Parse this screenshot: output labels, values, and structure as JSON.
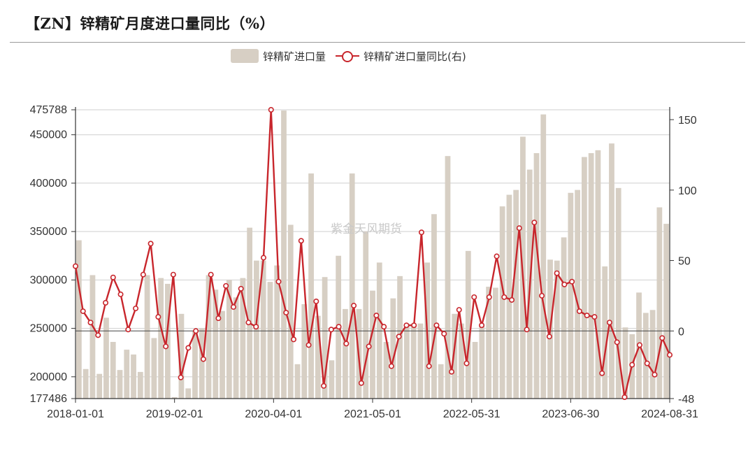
{
  "title": "【ZN】锌精矿月度进口量同比（%）",
  "watermark": "紫金天风期货",
  "legend": [
    {
      "label": "锌精矿进口量",
      "type": "bar",
      "color": "#d7cfc4"
    },
    {
      "label": "锌精矿进口量同比(右)",
      "type": "line",
      "color": "#c8262c"
    }
  ],
  "chart_data": {
    "type": "bar+line",
    "title": "【ZN】锌精矿月度进口量同比（%）",
    "x_ticks": [
      "2018-01-01",
      "2019-02-01",
      "2020-04-01",
      "2021-05-01",
      "2022-05-31",
      "2023-06-30",
      "2024-08-31"
    ],
    "y_left": {
      "min": 177486,
      "max": 475788,
      "ticks": [
        177486,
        200000,
        250000,
        300000,
        350000,
        400000,
        450000,
        475788
      ]
    },
    "y_right": {
      "min": -48,
      "max": 157,
      "ticks": [
        -48,
        0,
        50,
        100,
        150
      ]
    },
    "grid": true,
    "legend_position": "top-center",
    "series": [
      {
        "name": "锌精矿进口量",
        "type": "bar",
        "axis": "left",
        "values": [
          341000,
          208000,
          305000,
          203000,
          261000,
          236000,
          207000,
          228000,
          223000,
          205000,
          305000,
          240000,
          302000,
          296000,
          179000,
          265000,
          188000,
          247000,
          250000,
          305000,
          290000,
          268000,
          300000,
          282000,
          302000,
          354000,
          320000,
          320000,
          298000,
          315000,
          475000,
          357000,
          213000,
          275000,
          410000,
          263000,
          303000,
          217000,
          325000,
          270000,
          410000,
          270000,
          350000,
          289000,
          318000,
          236000,
          281000,
          304000,
          255000,
          255000,
          255000,
          318000,
          368000,
          213000,
          428000,
          265000,
          255000,
          330000,
          236000,
          255000,
          293000,
          292000,
          376000,
          388000,
          393000,
          448000,
          414000,
          431000,
          471000,
          321000,
          320000,
          344000,
          390000,
          393000,
          427000,
          431000,
          434000,
          314000,
          441000,
          395000,
          251000,
          244000,
          287000,
          266000,
          269000,
          375000,
          358000
        ]
      },
      {
        "name": "锌精矿进口量同比(右)",
        "type": "line",
        "axis": "right",
        "values": [
          46,
          14,
          6,
          -3,
          20,
          38,
          26,
          1,
          16,
          40,
          62,
          10,
          -11,
          40,
          -33,
          -12,
          0,
          -20,
          40,
          9,
          32,
          17,
          30,
          6,
          3,
          52,
          157,
          35,
          13,
          -6,
          64,
          -10,
          21,
          -39,
          1,
          3,
          -9,
          18,
          -37,
          -11,
          11,
          3,
          -25,
          -4,
          4,
          4,
          70,
          -25,
          4,
          -2,
          -29,
          15,
          -23,
          24,
          4,
          24,
          53,
          24,
          22,
          73,
          1,
          77,
          25,
          -4,
          41,
          33,
          35,
          14,
          11,
          10,
          -30,
          6,
          -8,
          -47,
          -24,
          -10,
          -23,
          -31,
          -5,
          -17
        ]
      }
    ]
  }
}
